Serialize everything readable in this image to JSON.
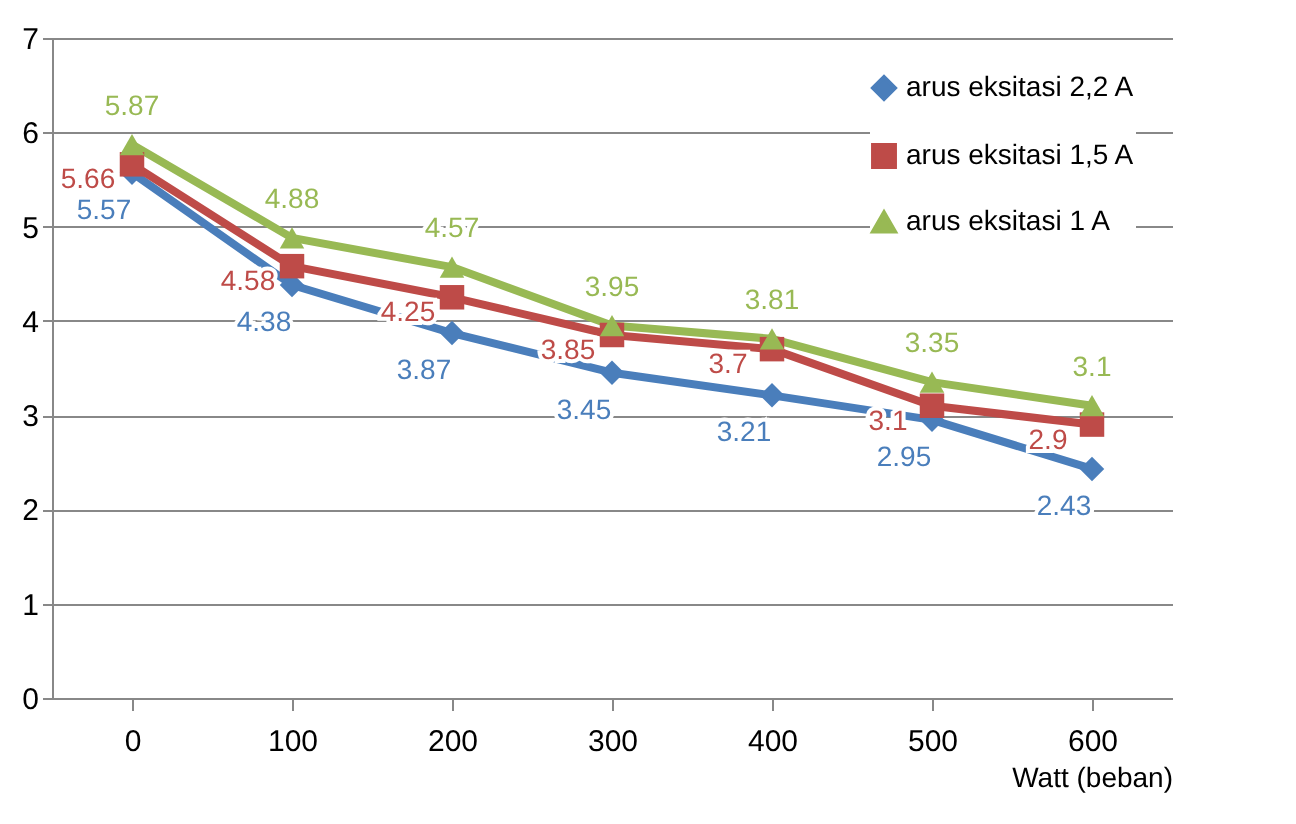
{
  "chart_data": {
    "type": "line",
    "xlabel": "Watt (beban)",
    "categories": [
      "0",
      "100",
      "200",
      "300",
      "400",
      "500",
      "600"
    ],
    "series": [
      {
        "name": "arus eksitasi 2,2 A",
        "color": "#4a7ebb",
        "marker": "diamond",
        "values": [
          5.57,
          4.38,
          3.87,
          3.45,
          3.21,
          2.95,
          2.43
        ]
      },
      {
        "name": "arus eksitasi 1,5 A",
        "color": "#be4b48",
        "marker": "square",
        "values": [
          5.66,
          4.58,
          4.25,
          3.85,
          3.7,
          3.1,
          2.9
        ]
      },
      {
        "name": "arus eksitasi 1 A",
        "color": "#98b954",
        "marker": "triangle",
        "values": [
          5.87,
          4.88,
          4.57,
          3.95,
          3.81,
          3.35,
          3.1
        ]
      }
    ],
    "ylim": [
      0,
      7
    ],
    "yticks": [
      0,
      1,
      2,
      3,
      4,
      5,
      6,
      7
    ],
    "grid": "y",
    "legend": "top right",
    "data_labels": true,
    "line_style": "solid"
  }
}
